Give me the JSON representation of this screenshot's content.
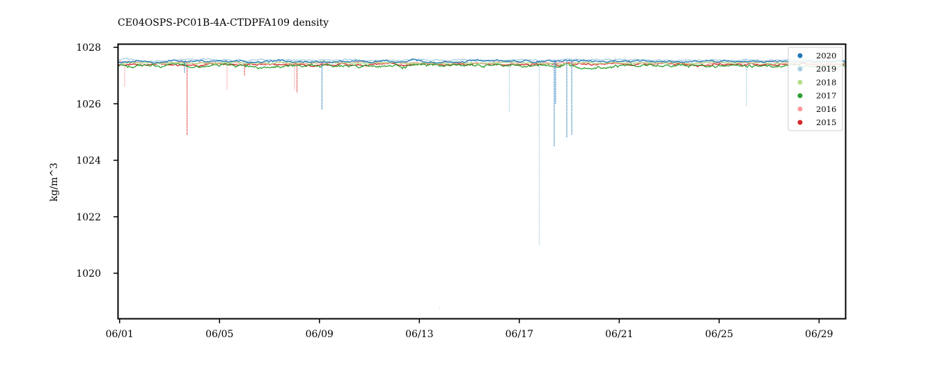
{
  "chart_data": {
    "type": "scatter",
    "title": "CE04OSPS-PC01B-4A-CTDPFA109 density",
    "xlabel": "",
    "ylabel": "kg/m^3",
    "x_ticks": [
      "06/01",
      "06/05",
      "06/09",
      "06/13",
      "06/17",
      "06/21",
      "06/25",
      "06/29"
    ],
    "x_tick_days": [
      1,
      5,
      9,
      13,
      17,
      21,
      25,
      29
    ],
    "xlim_days": [
      29.95,
      30.05
    ],
    "xlim": [
      "05/31",
      "06/30"
    ],
    "y_ticks": [
      1020,
      1022,
      1024,
      1026,
      1028
    ],
    "ylim": [
      1018.4,
      1028.1
    ],
    "legend_position": "top-right",
    "series": [
      {
        "name": "2020",
        "color": "#1f77b4",
        "baseline": 1027.5,
        "noise": 0.05,
        "spikes": [
          {
            "day": 3.6,
            "min": 1027.1
          },
          {
            "day": 9.1,
            "min": 1025.8
          },
          {
            "day": 18.4,
            "min": 1024.5
          },
          {
            "day": 18.45,
            "min": 1026.0
          },
          {
            "day": 18.9,
            "min": 1024.8
          },
          {
            "day": 19.1,
            "min": 1024.9
          }
        ]
      },
      {
        "name": "2019",
        "color": "#a6cee3",
        "baseline": 1027.55,
        "noise": 0.04,
        "spikes": [
          {
            "day": 16.6,
            "min": 1025.7
          },
          {
            "day": 17.8,
            "min": 1021.0
          },
          {
            "day": 26.1,
            "min": 1025.9
          },
          {
            "day": 13.8,
            "min": 1018.8
          }
        ]
      },
      {
        "name": "2018",
        "color": "#b2df8a",
        "baseline": 1027.45,
        "noise": 0.04,
        "spikes": []
      },
      {
        "name": "2017",
        "color": "#2ca02c",
        "baseline": 1027.35,
        "noise": 0.07,
        "spikes": []
      },
      {
        "name": "2016",
        "color": "#fb9a99",
        "baseline": 1027.45,
        "noise": 0.05,
        "spikes": [
          {
            "day": 1.2,
            "min": 1026.6
          },
          {
            "day": 5.3,
            "min": 1026.5
          },
          {
            "day": 8.0,
            "min": 1026.5
          }
        ]
      },
      {
        "name": "2015",
        "color": "#d62728",
        "baseline": 1027.4,
        "noise": 0.05,
        "spikes": [
          {
            "day": 3.7,
            "min": 1024.9
          },
          {
            "day": 6.0,
            "min": 1027.0
          },
          {
            "day": 8.1,
            "min": 1026.4
          }
        ]
      }
    ]
  }
}
